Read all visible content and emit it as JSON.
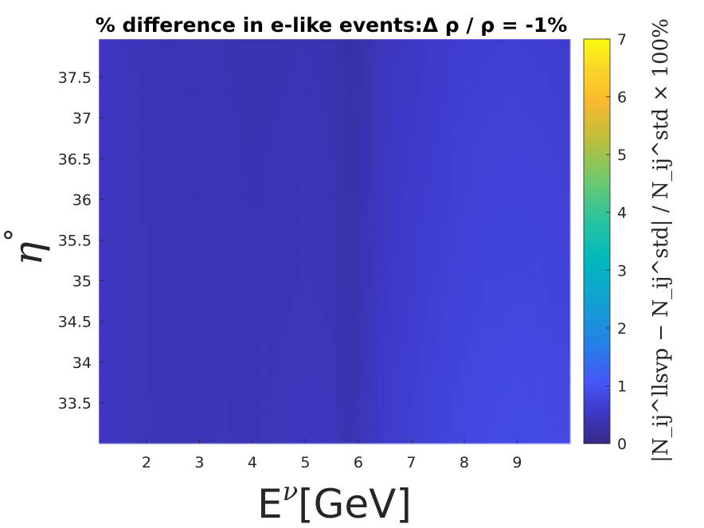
{
  "chart_data": {
    "type": "heatmap",
    "title": "% difference in e-like events:Δ ρ / ρ = -1%",
    "xlabel": "E^ν[GeV]",
    "xlabel_base": "E",
    "xlabel_sup": "ν",
    "xlabel_unit": "[GeV]",
    "ylabel": "η°",
    "ylabel_base": "η",
    "ylabel_sup": "°",
    "colorbar_label": "|N_ij^llsvp − N_ij^std| / N_ij^std × 100%",
    "xlim": [
      1.1,
      10.0
    ],
    "ylim": [
      33.0,
      37.97
    ],
    "x_ticks": [
      2,
      3,
      4,
      5,
      6,
      7,
      8,
      9
    ],
    "x_tick_labels": [
      "2",
      "3",
      "4",
      "5",
      "6",
      "7",
      "8",
      "9"
    ],
    "y_ticks": [
      33.5,
      34,
      34.5,
      35,
      35.5,
      36,
      36.5,
      37,
      37.5
    ],
    "y_tick_labels": [
      "33.5",
      "34",
      "34.5",
      "35",
      "35.5",
      "36",
      "36.5",
      "37",
      "37.5"
    ],
    "colorbar_range": [
      0,
      7
    ],
    "colorbar_ticks": [
      0,
      1,
      2,
      3,
      4,
      5,
      6,
      7
    ],
    "colorbar_tick_labels": [
      "0",
      "1",
      "2",
      "3",
      "4",
      "5",
      "6",
      "7"
    ],
    "colormap": "parula",
    "x_profile": {
      "x": [
        1.1,
        1.5,
        2.0,
        2.5,
        3.0,
        3.5,
        4.0,
        4.5,
        5.0,
        5.5,
        5.8,
        6.0,
        6.3,
        6.6,
        7.0,
        7.5,
        8.0,
        8.5,
        9.0,
        9.5,
        10.0
      ],
      "value": [
        0.5,
        0.46,
        0.42,
        0.4,
        0.4,
        0.4,
        0.38,
        0.4,
        0.42,
        0.4,
        0.3,
        0.34,
        0.46,
        0.55,
        0.6,
        0.66,
        0.72,
        0.75,
        0.76,
        0.75,
        0.72
      ]
    },
    "y_modulation": {
      "y": [
        33.0,
        33.5,
        34.0,
        34.5,
        35.0,
        35.5,
        36.0,
        36.5,
        37.0,
        37.5,
        37.97
      ],
      "value": [
        0.12,
        0.1,
        0.08,
        0.05,
        0.02,
        0.0,
        -0.02,
        -0.04,
        -0.06,
        -0.08,
        -0.1
      ]
    },
    "grid": false
  }
}
